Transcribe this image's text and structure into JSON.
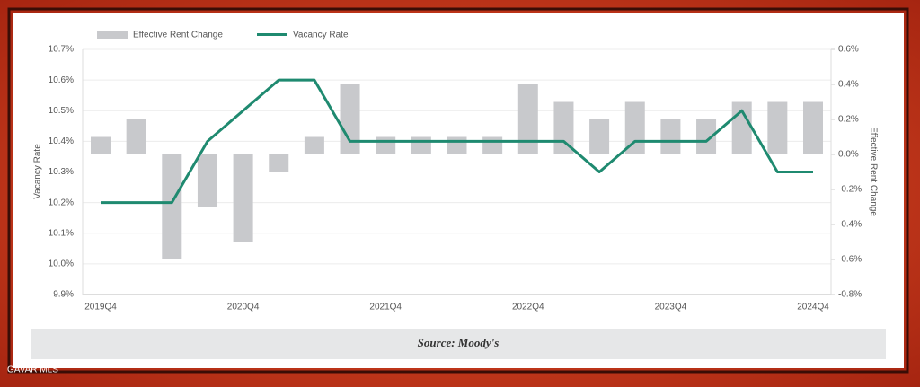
{
  "chart_data": {
    "type": "bar-line",
    "categories": [
      "2019Q4",
      null,
      null,
      null,
      "2020Q4",
      null,
      null,
      null,
      "2021Q4",
      null,
      null,
      null,
      "2022Q4",
      null,
      null,
      null,
      "2023Q4",
      null,
      null,
      null,
      "2024Q4"
    ],
    "series": [
      {
        "name": "Effective Rent Change",
        "type": "bar",
        "axis": "y2",
        "color": "#c8c9cc",
        "values": [
          0.1,
          0.2,
          -0.6,
          -0.3,
          -0.5,
          -0.1,
          0.1,
          0.4,
          0.1,
          0.1,
          0.1,
          0.1,
          0.4,
          0.3,
          0.2,
          0.3,
          0.2,
          0.2,
          0.3,
          0.3,
          0.3
        ]
      },
      {
        "name": "Vacancy Rate",
        "type": "line",
        "axis": "y",
        "color": "#1f8a70",
        "values": [
          10.2,
          10.2,
          10.2,
          10.4,
          10.5,
          10.6,
          10.6,
          10.4,
          10.4,
          10.4,
          10.4,
          10.4,
          10.4,
          10.4,
          10.3,
          10.4,
          10.4,
          10.4,
          10.5,
          10.3,
          10.3
        ]
      }
    ],
    "y_label": "Vacancy Rate",
    "y2_label": "Effective Rent Change",
    "ylim": [
      9.9,
      10.7
    ],
    "yticks": [
      {
        "value": 9.9,
        "label": "9.9%"
      },
      {
        "value": 10.0,
        "label": "10.0%"
      },
      {
        "value": 10.1,
        "label": "10.1%"
      },
      {
        "value": 10.2,
        "label": "10.2%"
      },
      {
        "value": 10.3,
        "label": "10.3%"
      },
      {
        "value": 10.4,
        "label": "10.4%"
      },
      {
        "value": 10.5,
        "label": "10.5%"
      },
      {
        "value": 10.6,
        "label": "10.6%"
      },
      {
        "value": 10.7,
        "label": "10.7%"
      }
    ],
    "y2lim": [
      -0.8,
      0.6
    ],
    "y2ticks": [
      {
        "value": -0.8,
        "label": "-0.8%"
      },
      {
        "value": -0.6,
        "label": "-0.6%"
      },
      {
        "value": -0.4,
        "label": "-0.4%"
      },
      {
        "value": -0.2,
        "label": "-0.2%"
      },
      {
        "value": 0.0,
        "label": "0.0%"
      },
      {
        "value": 0.2,
        "label": "0.2%"
      },
      {
        "value": 0.4,
        "label": "0.4%"
      },
      {
        "value": 0.6,
        "label": "0.6%"
      }
    ],
    "grid": true,
    "legend": "top-left",
    "source": "Source: Moody's"
  },
  "watermark": "GAVAR MLS"
}
